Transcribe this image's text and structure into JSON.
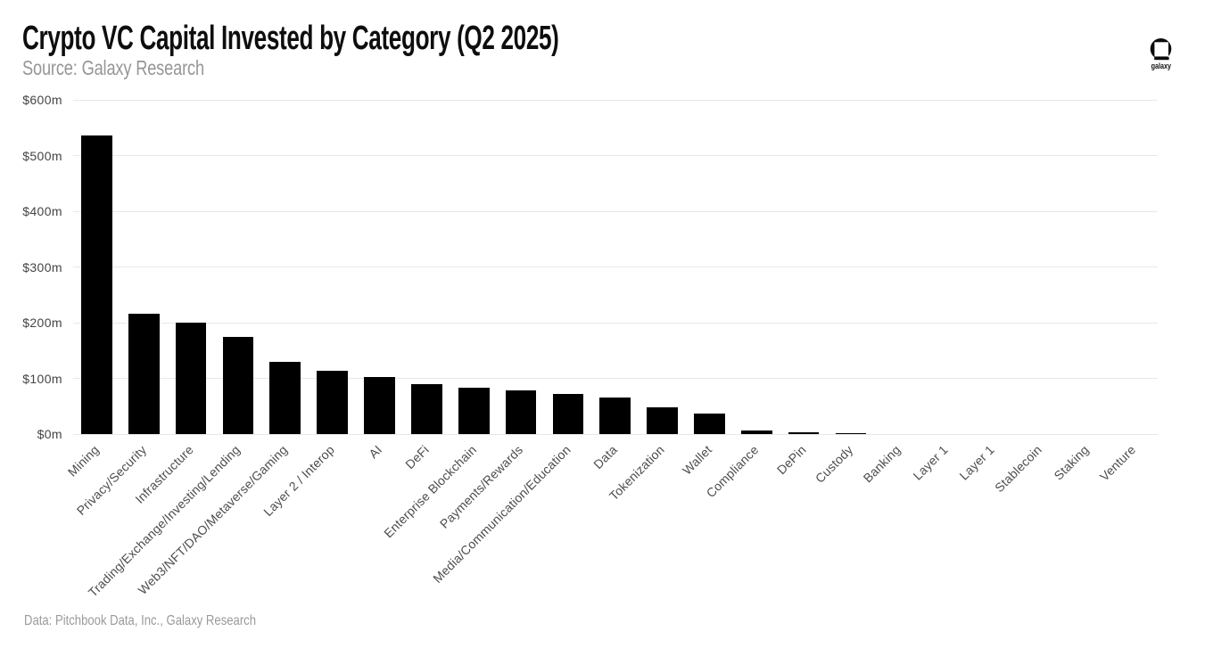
{
  "header": {
    "title": "Crypto VC Capital Invested by Category (Q2 2025)",
    "subtitle": "Source: Galaxy Research"
  },
  "logo": {
    "icon": "galaxy-helmet-icon",
    "wordmark": "galaxy"
  },
  "footer": {
    "credit": "Data: Pitchbook Data, Inc., Galaxy Research"
  },
  "colors": {
    "bar": "#000000",
    "gridline": "#e8e8e8",
    "tick_text": "#444444",
    "title_text": "#0e0e0e",
    "muted_text": "#9a9a9a",
    "background": "#ffffff"
  },
  "chart_data": {
    "type": "bar",
    "title": "Crypto VC Capital Invested by Category (Q2 2025)",
    "subtitle": "Source: Galaxy Research",
    "xlabel": "",
    "ylabel": "",
    "unit": "$m (millions of USD)",
    "ylim": [
      0,
      600
    ],
    "ytick_values": [
      0,
      100,
      200,
      300,
      400,
      500,
      600
    ],
    "ytick_labels": [
      "$0m",
      "$100m",
      "$200m",
      "$300m",
      "$400m",
      "$500m",
      "$600m"
    ],
    "grid": "horizontal",
    "legend": "none",
    "categories": [
      "Mining",
      "Privacy/Security",
      "Infrastructure",
      "Trading/Exchange/Investing/Lending",
      "Web3/NFT/DAO/Metaverse/Gaming",
      "Layer 2 / Interop",
      "AI",
      "DeFi",
      "Enterprise Blockchain",
      "Payments/Rewards",
      "Media/Communication/Education",
      "Data",
      "Tokenization",
      "Wallet",
      "Compliance",
      "DePin",
      "Custody",
      "Banking",
      "Layer 1",
      "Layer 1",
      "Stablecoin",
      "Staking",
      "Venture"
    ],
    "values": [
      536,
      216,
      200,
      175,
      130,
      114,
      103,
      90,
      84,
      78,
      72,
      66,
      48,
      37,
      6,
      3,
      2,
      0,
      0,
      0,
      0,
      0,
      0
    ]
  }
}
